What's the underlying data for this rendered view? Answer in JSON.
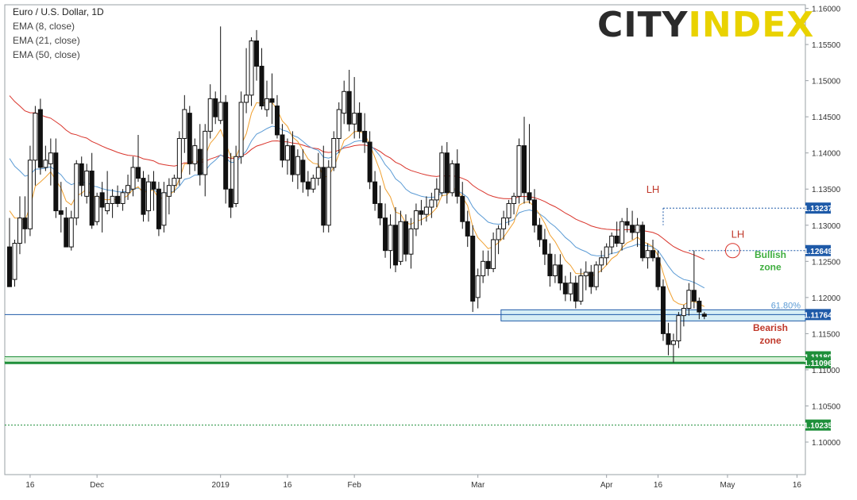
{
  "chart_data": {
    "type": "candlestick",
    "instrument": "Euro / U.S. Dollar, 1D",
    "indicators": [
      "EMA (8, close)",
      "EMA (21, close)",
      "EMA (50, close)"
    ],
    "ylim": [
      1.0955,
      1.1605
    ],
    "x_tick_labels": [
      "16",
      "Dec",
      "2019",
      "16",
      "Feb",
      "Mar",
      "Apr",
      "16",
      "May",
      "16"
    ],
    "y_tick_labels": [
      "1.16000",
      "1.15500",
      "1.15000",
      "1.14500",
      "1.14000",
      "1.13500",
      "1.13000",
      "1.12500",
      "1.12000",
      "1.11500",
      "1.11000",
      "1.10500",
      "1.10000"
    ],
    "y_tick_values": [
      1.16,
      1.155,
      1.15,
      1.145,
      1.14,
      1.135,
      1.13,
      1.125,
      1.12,
      1.115,
      1.11,
      1.105,
      1.1
    ],
    "candles": [
      {
        "o": 1.127,
        "h": 1.131,
        "l": 1.1215,
        "c": 1.1215
      },
      {
        "o": 1.1225,
        "h": 1.128,
        "l": 1.1215,
        "c": 1.1275
      },
      {
        "o": 1.1275,
        "h": 1.134,
        "l": 1.126,
        "c": 1.131
      },
      {
        "o": 1.131,
        "h": 1.134,
        "l": 1.1275,
        "c": 1.1295
      },
      {
        "o": 1.1295,
        "h": 1.141,
        "l": 1.1285,
        "c": 1.139
      },
      {
        "o": 1.139,
        "h": 1.1465,
        "l": 1.1355,
        "c": 1.1455
      },
      {
        "o": 1.146,
        "h": 1.1475,
        "l": 1.137,
        "c": 1.138
      },
      {
        "o": 1.138,
        "h": 1.141,
        "l": 1.1375,
        "c": 1.139
      },
      {
        "o": 1.1385,
        "h": 1.142,
        "l": 1.1355,
        "c": 1.14
      },
      {
        "o": 1.14,
        "h": 1.142,
        "l": 1.131,
        "c": 1.132
      },
      {
        "o": 1.132,
        "h": 1.136,
        "l": 1.129,
        "c": 1.1315
      },
      {
        "o": 1.131,
        "h": 1.1325,
        "l": 1.127,
        "c": 1.127
      },
      {
        "o": 1.127,
        "h": 1.132,
        "l": 1.1265,
        "c": 1.131
      },
      {
        "o": 1.131,
        "h": 1.139,
        "l": 1.13,
        "c": 1.1385
      },
      {
        "o": 1.1385,
        "h": 1.1395,
        "l": 1.134,
        "c": 1.1355
      },
      {
        "o": 1.134,
        "h": 1.1385,
        "l": 1.133,
        "c": 1.1375
      },
      {
        "o": 1.1375,
        "h": 1.14,
        "l": 1.1295,
        "c": 1.13
      },
      {
        "o": 1.1305,
        "h": 1.1345,
        "l": 1.13,
        "c": 1.134
      },
      {
        "o": 1.1345,
        "h": 1.136,
        "l": 1.129,
        "c": 1.1325
      },
      {
        "o": 1.132,
        "h": 1.1375,
        "l": 1.1315,
        "c": 1.133
      },
      {
        "o": 1.133,
        "h": 1.135,
        "l": 1.131,
        "c": 1.134
      },
      {
        "o": 1.134,
        "h": 1.1355,
        "l": 1.1325,
        "c": 1.133
      },
      {
        "o": 1.133,
        "h": 1.135,
        "l": 1.132,
        "c": 1.1345
      },
      {
        "o": 1.1345,
        "h": 1.137,
        "l": 1.1335,
        "c": 1.1355
      },
      {
        "o": 1.135,
        "h": 1.1395,
        "l": 1.134,
        "c": 1.138
      },
      {
        "o": 1.138,
        "h": 1.1425,
        "l": 1.136,
        "c": 1.1365
      },
      {
        "o": 1.1365,
        "h": 1.1375,
        "l": 1.1305,
        "c": 1.1315
      },
      {
        "o": 1.132,
        "h": 1.137,
        "l": 1.1305,
        "c": 1.136
      },
      {
        "o": 1.136,
        "h": 1.1375,
        "l": 1.132,
        "c": 1.135
      },
      {
        "o": 1.135,
        "h": 1.136,
        "l": 1.1285,
        "c": 1.1295
      },
      {
        "o": 1.13,
        "h": 1.136,
        "l": 1.129,
        "c": 1.1345
      },
      {
        "o": 1.134,
        "h": 1.1365,
        "l": 1.1315,
        "c": 1.1355
      },
      {
        "o": 1.1355,
        "h": 1.137,
        "l": 1.1345,
        "c": 1.1365
      },
      {
        "o": 1.1365,
        "h": 1.143,
        "l": 1.1355,
        "c": 1.142
      },
      {
        "o": 1.142,
        "h": 1.148,
        "l": 1.14,
        "c": 1.146
      },
      {
        "o": 1.1455,
        "h": 1.1465,
        "l": 1.137,
        "c": 1.1385
      },
      {
        "o": 1.1385,
        "h": 1.142,
        "l": 1.1375,
        "c": 1.141
      },
      {
        "o": 1.1405,
        "h": 1.144,
        "l": 1.1355,
        "c": 1.137
      },
      {
        "o": 1.137,
        "h": 1.144,
        "l": 1.134,
        "c": 1.143
      },
      {
        "o": 1.143,
        "h": 1.1495,
        "l": 1.142,
        "c": 1.1475
      },
      {
        "o": 1.1475,
        "h": 1.1485,
        "l": 1.144,
        "c": 1.145
      },
      {
        "o": 1.1445,
        "h": 1.1575,
        "l": 1.144,
        "c": 1.147
      },
      {
        "o": 1.147,
        "h": 1.148,
        "l": 1.133,
        "c": 1.135
      },
      {
        "o": 1.135,
        "h": 1.14,
        "l": 1.131,
        "c": 1.1325
      },
      {
        "o": 1.133,
        "h": 1.141,
        "l": 1.1325,
        "c": 1.1395
      },
      {
        "o": 1.1395,
        "h": 1.1485,
        "l": 1.1385,
        "c": 1.147
      },
      {
        "o": 1.147,
        "h": 1.1545,
        "l": 1.1455,
        "c": 1.148
      },
      {
        "o": 1.148,
        "h": 1.156,
        "l": 1.1465,
        "c": 1.1555
      },
      {
        "o": 1.1555,
        "h": 1.157,
        "l": 1.15,
        "c": 1.152
      },
      {
        "o": 1.152,
        "h": 1.1545,
        "l": 1.146,
        "c": 1.1465
      },
      {
        "o": 1.146,
        "h": 1.15,
        "l": 1.145,
        "c": 1.1475
      },
      {
        "o": 1.1475,
        "h": 1.151,
        "l": 1.144,
        "c": 1.147
      },
      {
        "o": 1.1465,
        "h": 1.148,
        "l": 1.142,
        "c": 1.1425
      },
      {
        "o": 1.1425,
        "h": 1.144,
        "l": 1.138,
        "c": 1.139
      },
      {
        "o": 1.139,
        "h": 1.142,
        "l": 1.137,
        "c": 1.141
      },
      {
        "o": 1.141,
        "h": 1.143,
        "l": 1.136,
        "c": 1.137
      },
      {
        "o": 1.137,
        "h": 1.1405,
        "l": 1.135,
        "c": 1.1395
      },
      {
        "o": 1.139,
        "h": 1.1405,
        "l": 1.1345,
        "c": 1.136
      },
      {
        "o": 1.136,
        "h": 1.1375,
        "l": 1.134,
        "c": 1.135
      },
      {
        "o": 1.135,
        "h": 1.137,
        "l": 1.1345,
        "c": 1.1365
      },
      {
        "o": 1.1365,
        "h": 1.14,
        "l": 1.1355,
        "c": 1.138
      },
      {
        "o": 1.138,
        "h": 1.141,
        "l": 1.129,
        "c": 1.13
      },
      {
        "o": 1.13,
        "h": 1.139,
        "l": 1.129,
        "c": 1.138
      },
      {
        "o": 1.138,
        "h": 1.143,
        "l": 1.1375,
        "c": 1.142
      },
      {
        "o": 1.142,
        "h": 1.147,
        "l": 1.14,
        "c": 1.146
      },
      {
        "o": 1.1455,
        "h": 1.15,
        "l": 1.144,
        "c": 1.1485
      },
      {
        "o": 1.1485,
        "h": 1.1515,
        "l": 1.143,
        "c": 1.144
      },
      {
        "o": 1.144,
        "h": 1.1505,
        "l": 1.142,
        "c": 1.1455
      },
      {
        "o": 1.1455,
        "h": 1.147,
        "l": 1.142,
        "c": 1.143
      },
      {
        "o": 1.143,
        "h": 1.1455,
        "l": 1.14,
        "c": 1.1415
      },
      {
        "o": 1.1415,
        "h": 1.143,
        "l": 1.135,
        "c": 1.136
      },
      {
        "o": 1.136,
        "h": 1.1375,
        "l": 1.132,
        "c": 1.133
      },
      {
        "o": 1.133,
        "h": 1.1355,
        "l": 1.13,
        "c": 1.131
      },
      {
        "o": 1.131,
        "h": 1.133,
        "l": 1.1255,
        "c": 1.1265
      },
      {
        "o": 1.1265,
        "h": 1.1315,
        "l": 1.124,
        "c": 1.13
      },
      {
        "o": 1.13,
        "h": 1.1325,
        "l": 1.1235,
        "c": 1.1245
      },
      {
        "o": 1.125,
        "h": 1.132,
        "l": 1.1245,
        "c": 1.1305
      },
      {
        "o": 1.1305,
        "h": 1.1315,
        "l": 1.125,
        "c": 1.126
      },
      {
        "o": 1.126,
        "h": 1.131,
        "l": 1.124,
        "c": 1.1295
      },
      {
        "o": 1.1295,
        "h": 1.133,
        "l": 1.1285,
        "c": 1.132
      },
      {
        "o": 1.132,
        "h": 1.1335,
        "l": 1.13,
        "c": 1.1315
      },
      {
        "o": 1.1315,
        "h": 1.134,
        "l": 1.1305,
        "c": 1.1325
      },
      {
        "o": 1.1325,
        "h": 1.1345,
        "l": 1.131,
        "c": 1.1335
      },
      {
        "o": 1.1335,
        "h": 1.1365,
        "l": 1.1325,
        "c": 1.135
      },
      {
        "o": 1.1345,
        "h": 1.141,
        "l": 1.134,
        "c": 1.14
      },
      {
        "o": 1.14,
        "h": 1.1415,
        "l": 1.133,
        "c": 1.1345
      },
      {
        "o": 1.1345,
        "h": 1.139,
        "l": 1.134,
        "c": 1.1385
      },
      {
        "o": 1.1385,
        "h": 1.1405,
        "l": 1.133,
        "c": 1.134
      },
      {
        "o": 1.134,
        "h": 1.136,
        "l": 1.1295,
        "c": 1.1305
      },
      {
        "o": 1.1305,
        "h": 1.132,
        "l": 1.127,
        "c": 1.1285
      },
      {
        "o": 1.1285,
        "h": 1.13,
        "l": 1.118,
        "c": 1.1195
      },
      {
        "o": 1.12,
        "h": 1.124,
        "l": 1.1185,
        "c": 1.123
      },
      {
        "o": 1.123,
        "h": 1.1265,
        "l": 1.122,
        "c": 1.125
      },
      {
        "o": 1.125,
        "h": 1.1265,
        "l": 1.123,
        "c": 1.124
      },
      {
        "o": 1.124,
        "h": 1.129,
        "l": 1.1235,
        "c": 1.128
      },
      {
        "o": 1.128,
        "h": 1.13,
        "l": 1.126,
        "c": 1.1295
      },
      {
        "o": 1.1295,
        "h": 1.132,
        "l": 1.128,
        "c": 1.131
      },
      {
        "o": 1.131,
        "h": 1.1335,
        "l": 1.13,
        "c": 1.133
      },
      {
        "o": 1.133,
        "h": 1.1345,
        "l": 1.1315,
        "c": 1.134
      },
      {
        "o": 1.134,
        "h": 1.142,
        "l": 1.133,
        "c": 1.141
      },
      {
        "o": 1.141,
        "h": 1.145,
        "l": 1.133,
        "c": 1.1345
      },
      {
        "o": 1.1345,
        "h": 1.144,
        "l": 1.133,
        "c": 1.1335
      },
      {
        "o": 1.1335,
        "h": 1.135,
        "l": 1.129,
        "c": 1.13
      },
      {
        "o": 1.13,
        "h": 1.131,
        "l": 1.127,
        "c": 1.128
      },
      {
        "o": 1.128,
        "h": 1.1295,
        "l": 1.1245,
        "c": 1.126
      },
      {
        "o": 1.126,
        "h": 1.1275,
        "l": 1.1215,
        "c": 1.123
      },
      {
        "o": 1.123,
        "h": 1.126,
        "l": 1.122,
        "c": 1.1245
      },
      {
        "o": 1.1245,
        "h": 1.126,
        "l": 1.121,
        "c": 1.122
      },
      {
        "o": 1.122,
        "h": 1.123,
        "l": 1.1195,
        "c": 1.1205
      },
      {
        "o": 1.1205,
        "h": 1.1235,
        "l": 1.1195,
        "c": 1.122
      },
      {
        "o": 1.122,
        "h": 1.123,
        "l": 1.1185,
        "c": 1.1195
      },
      {
        "o": 1.1195,
        "h": 1.124,
        "l": 1.119,
        "c": 1.123
      },
      {
        "o": 1.123,
        "h": 1.125,
        "l": 1.121,
        "c": 1.1235
      },
      {
        "o": 1.1235,
        "h": 1.1245,
        "l": 1.1205,
        "c": 1.1215
      },
      {
        "o": 1.1215,
        "h": 1.125,
        "l": 1.121,
        "c": 1.1245
      },
      {
        "o": 1.1245,
        "h": 1.1265,
        "l": 1.1235,
        "c": 1.1255
      },
      {
        "o": 1.1255,
        "h": 1.1275,
        "l": 1.1245,
        "c": 1.127
      },
      {
        "o": 1.127,
        "h": 1.129,
        "l": 1.126,
        "c": 1.1285
      },
      {
        "o": 1.1285,
        "h": 1.1305,
        "l": 1.127,
        "c": 1.1275
      },
      {
        "o": 1.1275,
        "h": 1.131,
        "l": 1.1265,
        "c": 1.1305
      },
      {
        "o": 1.1305,
        "h": 1.1324,
        "l": 1.129,
        "c": 1.13
      },
      {
        "o": 1.13,
        "h": 1.132,
        "l": 1.128,
        "c": 1.129
      },
      {
        "o": 1.129,
        "h": 1.131,
        "l": 1.127,
        "c": 1.13
      },
      {
        "o": 1.13,
        "h": 1.1305,
        "l": 1.125,
        "c": 1.1255
      },
      {
        "o": 1.1255,
        "h": 1.1275,
        "l": 1.124,
        "c": 1.1265
      },
      {
        "o": 1.1265,
        "h": 1.128,
        "l": 1.125,
        "c": 1.1255
      },
      {
        "o": 1.1255,
        "h": 1.1265,
        "l": 1.121,
        "c": 1.1215
      },
      {
        "o": 1.1215,
        "h": 1.1225,
        "l": 1.114,
        "c": 1.115
      },
      {
        "o": 1.115,
        "h": 1.1165,
        "l": 1.112,
        "c": 1.1135
      },
      {
        "o": 1.1135,
        "h": 1.115,
        "l": 1.111,
        "c": 1.114
      },
      {
        "o": 1.114,
        "h": 1.118,
        "l": 1.113,
        "c": 1.1175
      },
      {
        "o": 1.1175,
        "h": 1.119,
        "l": 1.116,
        "c": 1.1185
      },
      {
        "o": 1.1185,
        "h": 1.122,
        "l": 1.1175,
        "c": 1.121
      },
      {
        "o": 1.121,
        "h": 1.1265,
        "l": 1.1185,
        "c": 1.1195
      },
      {
        "o": 1.1195,
        "h": 1.12,
        "l": 1.117,
        "c": 1.118
      },
      {
        "o": 1.1177,
        "h": 1.118,
        "l": 1.117,
        "c": 1.1174
      }
    ],
    "levels": [
      {
        "value": 1.13237,
        "label": "1.13237",
        "color": "#1e5aa8",
        "style": "dotted"
      },
      {
        "value": 1.12649,
        "label": "1.12649",
        "color": "#1e5aa8",
        "style": "dotted"
      },
      {
        "value": 1.11764,
        "label": "1.11764",
        "color": "#1e5aa8",
        "style": "solid"
      },
      {
        "value": 1.1118,
        "label": "1.11180",
        "color": "#1e8f3a",
        "style": "solid"
      },
      {
        "value": 1.11096,
        "label": "1.11096",
        "color": "#1e8f3a",
        "style": "solid"
      },
      {
        "value": 1.10235,
        "label": "1.10235",
        "color": "#1e8f3a",
        "style": "dotted"
      }
    ],
    "fib_label": "61.80%",
    "annotations": [
      {
        "text": "LH",
        "color": "#c0392b"
      },
      {
        "text": "LH",
        "color": "#c0392b"
      },
      {
        "text": "Bullish",
        "color": "#3fae3f"
      },
      {
        "text": "zone",
        "color": "#3fae3f"
      },
      {
        "text": "Bearish",
        "color": "#c0392b"
      },
      {
        "text": "zone",
        "color": "#c0392b"
      }
    ],
    "colors": {
      "ema8": "#f0a030",
      "ema21": "#5b9bd5",
      "ema50": "#d9342b",
      "bull": "#ffffff",
      "bear": "#111111"
    }
  },
  "logo": {
    "part1": "CITY",
    "part2": "INDEX"
  }
}
